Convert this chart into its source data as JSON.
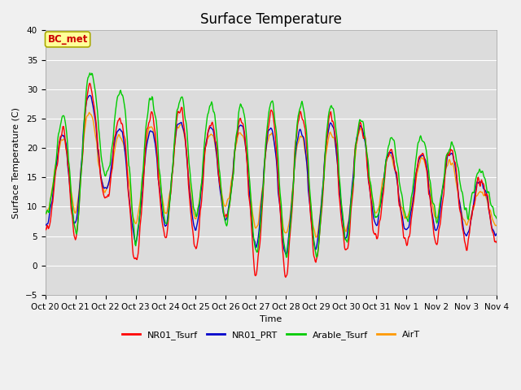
{
  "title": "Surface Temperature",
  "xlabel": "Time",
  "ylabel": "Surface Temperature (C)",
  "ylim": [
    -5,
    40
  ],
  "xlim": [
    0,
    15
  ],
  "annotation_text": "BC_met",
  "annotation_color": "#cc0000",
  "annotation_bg": "#ffff99",
  "annotation_border": "#aaaa00",
  "series_colors": {
    "NR01_Tsurf": "#ff0000",
    "NR01_PRT": "#0000cc",
    "Arable_Tsurf": "#00cc00",
    "AirT": "#ff9900"
  },
  "series_labels": [
    "NR01_Tsurf",
    "NR01_PRT",
    "Arable_Tsurf",
    "AirT"
  ],
  "tick_labels": [
    "Oct 20",
    "Oct 21",
    "Oct 22",
    "Oct 23",
    "Oct 24",
    "Oct 25",
    "Oct 26",
    "Oct 27",
    "Oct 28",
    "Oct 29",
    "Oct 30",
    "Oct 31",
    "Nov 1",
    "Nov 2",
    "Nov 3",
    "Nov 4"
  ],
  "yticks": [
    -5,
    0,
    5,
    10,
    15,
    20,
    25,
    30,
    35,
    40
  ],
  "bg_color": "#dcdcdc",
  "fig_bg": "#f0f0f0",
  "grid_color": "#ffffff",
  "title_fontsize": 12,
  "axis_fontsize": 8,
  "tick_fontsize": 7.5,
  "legend_fontsize": 8,
  "linewidth": 1.0,
  "peaks_NR01": [
    9,
    34,
    27,
    22,
    29,
    24,
    25,
    25,
    27,
    25,
    26,
    22,
    17,
    22,
    17,
    12
  ],
  "troughs_NR01": [
    5,
    5,
    11,
    0,
    5,
    3,
    8,
    -1,
    -1,
    1,
    2,
    5,
    4,
    4,
    4,
    4
  ],
  "peaks_PRT": [
    11,
    32,
    26,
    20,
    26,
    23,
    24,
    24,
    23,
    23,
    25,
    22,
    16,
    22,
    16,
    13
  ],
  "troughs_PRT": [
    7,
    7,
    13,
    4,
    7,
    6,
    8,
    3,
    2,
    3,
    5,
    7,
    6,
    6,
    5,
    5
  ],
  "peaks_Arable": [
    13,
    35,
    31,
    28,
    29,
    28,
    27,
    27,
    28,
    27,
    27,
    22,
    21,
    22,
    19,
    13
  ],
  "troughs_Arable": [
    9,
    5,
    16,
    4,
    7,
    8,
    7,
    2,
    2,
    2,
    4,
    8,
    8,
    8,
    9,
    9
  ],
  "peaks_AirT": [
    13,
    29,
    23,
    21,
    26,
    22,
    23,
    23,
    22,
    22,
    23,
    23,
    14,
    22,
    13,
    12
  ],
  "troughs_AirT": [
    9,
    9,
    13,
    7,
    9,
    8,
    10,
    6,
    5,
    5,
    6,
    9,
    8,
    8,
    7,
    7
  ]
}
